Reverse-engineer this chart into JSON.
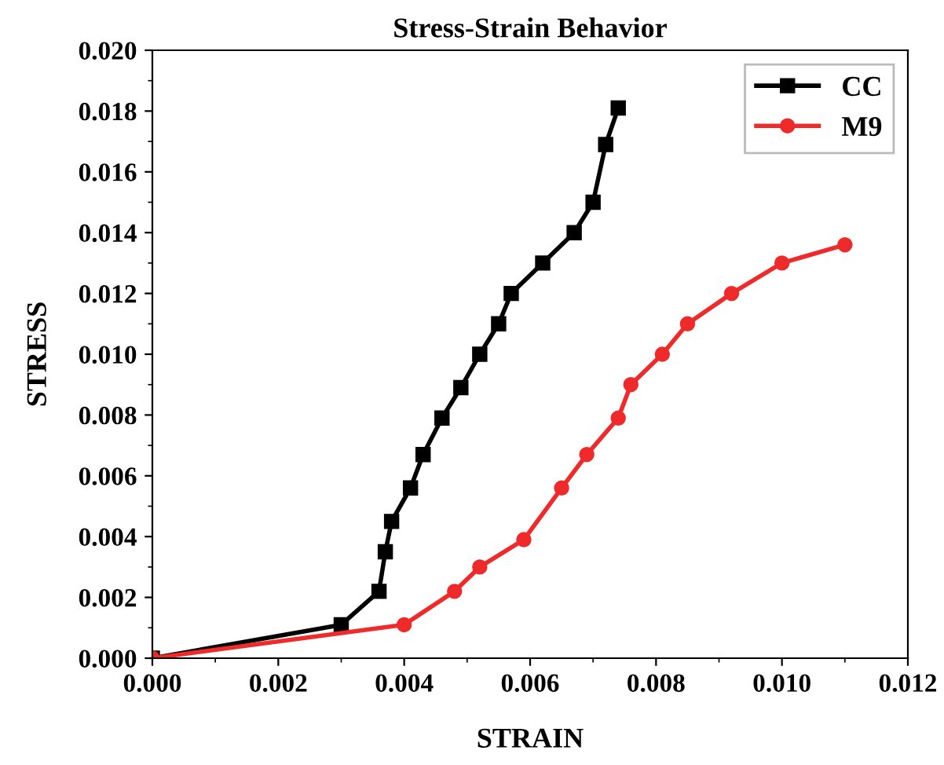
{
  "chart_data": {
    "type": "line",
    "title": "Stress-Strain Behavior",
    "xlabel": "STRAIN",
    "ylabel": "STRESS",
    "xlim": [
      0,
      0.012
    ],
    "xticks": [
      {
        "value": 0,
        "label": "0.000"
      },
      {
        "value": 0.002,
        "label": "0.002"
      },
      {
        "value": 0.004,
        "label": "0.004"
      },
      {
        "value": 0.006,
        "label": "0.006"
      },
      {
        "value": 0.008,
        "label": "0.008"
      },
      {
        "value": 0.01,
        "label": "0.010"
      },
      {
        "value": 0.012,
        "label": "0.012"
      }
    ],
    "ylim": [
      0,
      0.02
    ],
    "yticks": [
      {
        "value": 0,
        "label": "0.000"
      },
      {
        "value": 0.002,
        "label": "0.002"
      },
      {
        "value": 0.004,
        "label": "0.004"
      },
      {
        "value": 0.006,
        "label": "0.006"
      },
      {
        "value": 0.008,
        "label": "0.008"
      },
      {
        "value": 0.01,
        "label": "0.010"
      },
      {
        "value": 0.012,
        "label": "0.012"
      },
      {
        "value": 0.014,
        "label": "0.014"
      },
      {
        "value": 0.016,
        "label": "0.016"
      },
      {
        "value": 0.018,
        "label": "0.018"
      },
      {
        "value": 0.02,
        "label": "0.020"
      }
    ],
    "grid": false,
    "legend": "top right",
    "series": [
      {
        "name": "CC",
        "color": "#000000",
        "marker": "square",
        "x": [
          0,
          0.003,
          0.0036,
          0.0037,
          0.0038,
          0.0041,
          0.0043,
          0.0046,
          0.0049,
          0.0052,
          0.0055,
          0.0057,
          0.0062,
          0.0067,
          0.007,
          0.0072,
          0.0074
        ],
        "values": [
          0,
          0.0011,
          0.0022,
          0.0035,
          0.0045,
          0.0056,
          0.0067,
          0.0079,
          0.0089,
          0.01,
          0.011,
          0.012,
          0.013,
          0.014,
          0.015,
          0.0169,
          0.0181
        ]
      },
      {
        "name": "M9",
        "color": "#ee2a2a",
        "marker": "circle",
        "x": [
          0,
          0.004,
          0.0048,
          0.0052,
          0.0059,
          0.0065,
          0.0069,
          0.0074,
          0.0076,
          0.0081,
          0.0085,
          0.0092,
          0.01,
          0.011
        ],
        "values": [
          0,
          0.0011,
          0.0022,
          0.003,
          0.0039,
          0.0056,
          0.0067,
          0.0079,
          0.009,
          0.01,
          0.011,
          0.012,
          0.013,
          0.0136
        ]
      }
    ]
  }
}
